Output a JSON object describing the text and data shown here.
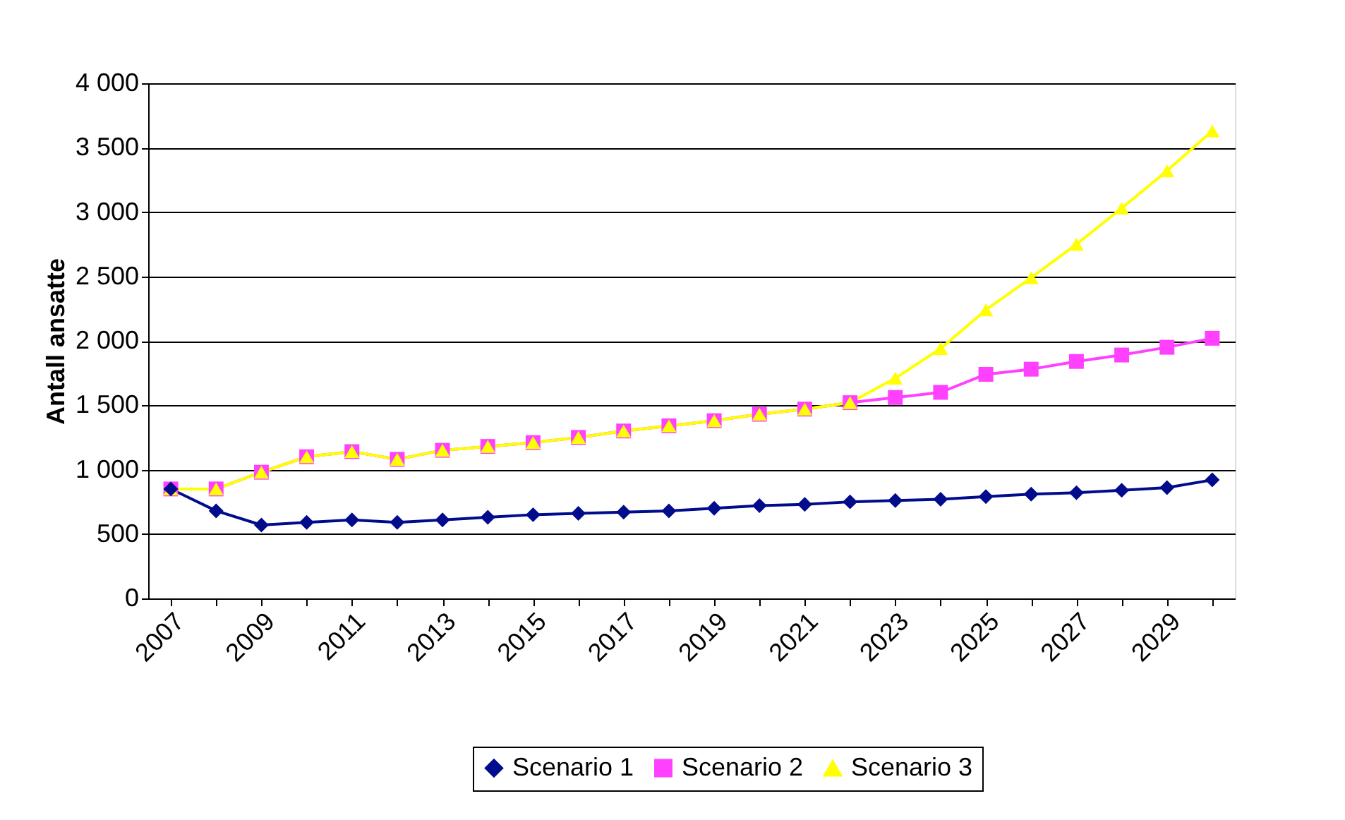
{
  "chart_data": {
    "type": "line",
    "ylabel": "Antall ansatte",
    "categories": [
      "2007",
      null,
      "2009",
      null,
      "2011",
      null,
      "2013",
      null,
      "2015",
      null,
      "2017",
      null,
      "2019",
      null,
      "2021",
      null,
      "2023",
      null,
      "2025",
      null,
      "2027",
      null,
      "2029",
      null
    ],
    "series": [
      {
        "name": "Scenario 1",
        "color": "#000c8c",
        "marker": "diamond",
        "values": [
          850,
          680,
          570,
          590,
          610,
          590,
          610,
          630,
          650,
          660,
          670,
          680,
          700,
          720,
          730,
          750,
          760,
          770,
          790,
          810,
          820,
          840,
          860,
          920
        ]
      },
      {
        "name": "Scenario 2",
        "color": "#ff40ff",
        "marker": "square",
        "values": [
          850,
          850,
          980,
          1100,
          1140,
          1080,
          1150,
          1180,
          1210,
          1250,
          1300,
          1340,
          1380,
          1430,
          1470,
          1520,
          1560,
          1600,
          1740,
          1780,
          1840,
          1890,
          1950,
          2020
        ]
      },
      {
        "name": "Scenario 3",
        "color": "#ffff00",
        "marker": "triangle",
        "values": [
          850,
          850,
          980,
          1100,
          1140,
          1080,
          1150,
          1180,
          1210,
          1250,
          1300,
          1340,
          1380,
          1430,
          1470,
          1520,
          1710,
          1940,
          2240,
          2490,
          2750,
          3030,
          3320,
          3630
        ]
      }
    ],
    "ylim": [
      0,
      4000
    ],
    "yticks": [
      0,
      500,
      {
        "value": 1000,
        "label": "1 000"
      },
      {
        "value": 1500,
        "label": "1 500"
      },
      {
        "value": 2000,
        "label": "2 000"
      },
      {
        "value": 2500,
        "label": "2 500"
      },
      {
        "value": 3000,
        "label": "3 000"
      },
      {
        "value": 3500,
        "label": "3 500"
      },
      {
        "value": 4000,
        "label": "4 000"
      }
    ],
    "grid": "y",
    "legend": "bottom",
    "line_style": "solid"
  }
}
